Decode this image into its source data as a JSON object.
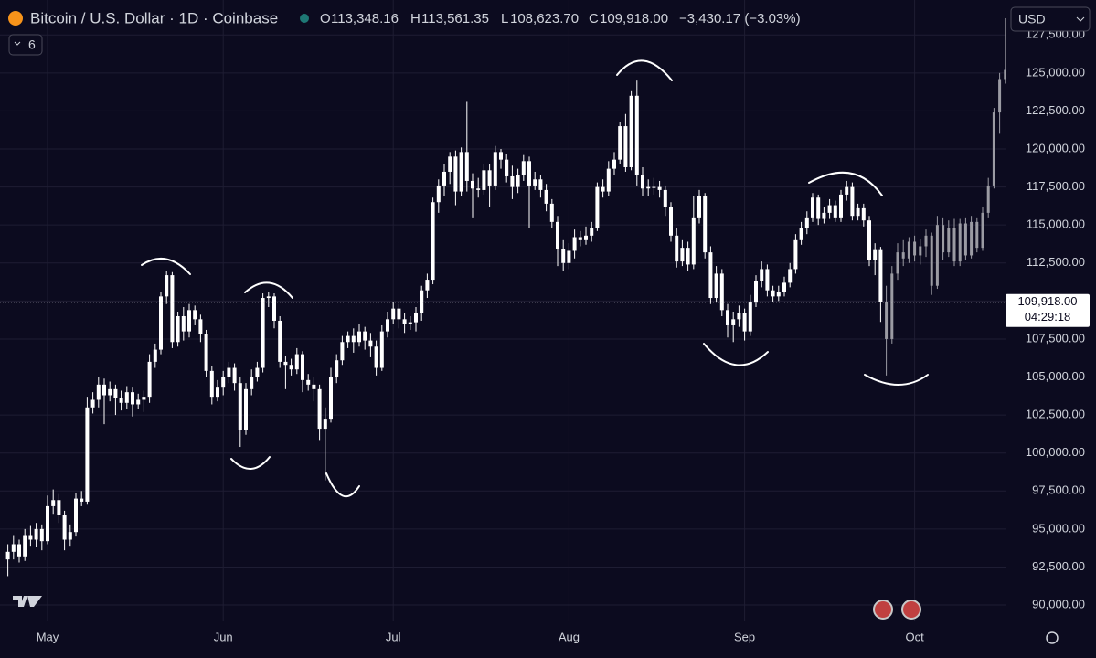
{
  "chart_data": {
    "type": "candlestick",
    "header": {
      "title": "Bitcoin / U.S. Dollar · 1D · Coinbase",
      "o_label": "O",
      "o": "113,348.16",
      "h_label": "H",
      "h": "113,561.35",
      "l_label": "L",
      "l": "108,623.70",
      "c_label": "C",
      "c": "109,918.00",
      "change": "−3,430.17 (−3.03%)"
    },
    "currency": "USD",
    "indicator_count": "6",
    "last_price_label": "109,918.00",
    "countdown": "04:29:18",
    "color": "#ffffff",
    "projection_color": "#9b9ba3",
    "grid": true,
    "ylim": [
      88920,
      129800
    ],
    "yticks": [
      {
        "value": 90000,
        "label": "90,000.00"
      },
      {
        "value": 92500,
        "label": "92,500.00"
      },
      {
        "value": 95000,
        "label": "95,000.00"
      },
      {
        "value": 97500,
        "label": "97,500.00"
      },
      {
        "value": 100000,
        "label": "100,000.00"
      },
      {
        "value": 102500,
        "label": "102,500.00"
      },
      {
        "value": 105000,
        "label": "105,000.00"
      },
      {
        "value": 107500,
        "label": "107,500.00"
      },
      {
        "value": 110000,
        "label": "110,000.00"
      },
      {
        "value": 112500,
        "label": "112,500.00"
      },
      {
        "value": 115000,
        "label": "115,000.00"
      },
      {
        "value": 117500,
        "label": "117,500.00"
      },
      {
        "value": 120000,
        "label": "120,000.00"
      },
      {
        "value": 122500,
        "label": "122,500.00"
      },
      {
        "value": 125000,
        "label": "125,000.00"
      },
      {
        "value": 127500,
        "label": "127,500.00"
      }
    ],
    "xticks": [
      {
        "value": 7,
        "label": "May"
      },
      {
        "value": 38,
        "label": "Jun"
      },
      {
        "value": 68,
        "label": "Jul"
      },
      {
        "value": 99,
        "label": "Aug"
      },
      {
        "value": 130,
        "label": "Sep"
      },
      {
        "value": 160,
        "label": "Oct"
      }
    ],
    "candles": [
      [
        93000,
        94000,
        91900,
        93500
      ],
      [
        93500,
        94600,
        93000,
        94000
      ],
      [
        94000,
        94300,
        92800,
        93200
      ],
      [
        93200,
        95000,
        92900,
        94600
      ],
      [
        94600,
        95200,
        93900,
        94300
      ],
      [
        94300,
        95400,
        93800,
        95000
      ],
      [
        95000,
        95300,
        93600,
        94200
      ],
      [
        94200,
        97200,
        94000,
        96500
      ],
      [
        96500,
        97600,
        96000,
        96900
      ],
      [
        96900,
        97300,
        95400,
        95900
      ],
      [
        95900,
        96200,
        93600,
        94300
      ],
      [
        94300,
        95300,
        93900,
        94800
      ],
      [
        94800,
        97400,
        94500,
        97000
      ],
      [
        97000,
        97500,
        96500,
        96800
      ],
      [
        96800,
        103700,
        96600,
        103000
      ],
      [
        103000,
        104000,
        102600,
        103500
      ],
      [
        103500,
        105000,
        103000,
        104500
      ],
      [
        104500,
        104900,
        101900,
        103800
      ],
      [
        103800,
        104700,
        103400,
        104200
      ],
      [
        104200,
        104500,
        102500,
        103600
      ],
      [
        103600,
        104100,
        102800,
        103300
      ],
      [
        103300,
        104400,
        102900,
        104000
      ],
      [
        104000,
        104300,
        102400,
        103200
      ],
      [
        103200,
        103900,
        102900,
        103500
      ],
      [
        103500,
        104100,
        102700,
        103700
      ],
      [
        103700,
        106500,
        103300,
        106000
      ],
      [
        106000,
        107200,
        105600,
        106800
      ],
      [
        106800,
        110600,
        106500,
        110300
      ],
      [
        110300,
        112000,
        109800,
        111700
      ],
      [
        111700,
        111900,
        106900,
        107300
      ],
      [
        107300,
        109300,
        107000,
        109000
      ],
      [
        109000,
        109600,
        107400,
        108000
      ],
      [
        108000,
        109800,
        107600,
        109400
      ],
      [
        109400,
        109700,
        108400,
        108800
      ],
      [
        108800,
        109100,
        107300,
        107800
      ],
      [
        107800,
        108100,
        105000,
        105400
      ],
      [
        105400,
        105700,
        103200,
        103700
      ],
      [
        103700,
        104800,
        103400,
        104300
      ],
      [
        104300,
        105400,
        103800,
        105000
      ],
      [
        105000,
        106000,
        104600,
        105600
      ],
      [
        105600,
        105900,
        104100,
        104600
      ],
      [
        104600,
        105000,
        100400,
        101500
      ],
      [
        101500,
        104600,
        101200,
        104200
      ],
      [
        104200,
        105500,
        103800,
        105000
      ],
      [
        105000,
        106000,
        104700,
        105600
      ],
      [
        105600,
        110500,
        105300,
        110200
      ],
      [
        110200,
        110600,
        109600,
        110300
      ],
      [
        110300,
        110500,
        108200,
        108700
      ],
      [
        108700,
        109000,
        105600,
        106000
      ],
      [
        106000,
        106400,
        104200,
        105800
      ],
      [
        105800,
        106200,
        105100,
        105500
      ],
      [
        105500,
        106900,
        105200,
        106500
      ],
      [
        106500,
        106700,
        104000,
        104800
      ],
      [
        104800,
        105200,
        104100,
        104500
      ],
      [
        104500,
        105000,
        103400,
        104200
      ],
      [
        104200,
        104500,
        100800,
        101600
      ],
      [
        101600,
        103000,
        98200,
        102200
      ],
      [
        102200,
        105600,
        102000,
        105000
      ],
      [
        105000,
        106500,
        104600,
        106100
      ],
      [
        106100,
        107700,
        105800,
        107300
      ],
      [
        107300,
        108000,
        106900,
        107700
      ],
      [
        107700,
        108200,
        106600,
        107300
      ],
      [
        107300,
        108500,
        107000,
        108000
      ],
      [
        108000,
        108300,
        106800,
        107400
      ],
      [
        107400,
        107900,
        106300,
        107000
      ],
      [
        107000,
        107400,
        105100,
        105600
      ],
      [
        105600,
        108400,
        105400,
        108000
      ],
      [
        108000,
        109300,
        107600,
        108800
      ],
      [
        108800,
        109900,
        108500,
        109500
      ],
      [
        109500,
        109800,
        108200,
        108800
      ],
      [
        108800,
        109200,
        107900,
        108500
      ],
      [
        108500,
        109000,
        108100,
        108600
      ],
      [
        108600,
        109600,
        108000,
        109200
      ],
      [
        109200,
        111000,
        108700,
        110700
      ],
      [
        110700,
        111800,
        110200,
        111400
      ],
      [
        111400,
        116800,
        111100,
        116500
      ],
      [
        116500,
        118000,
        115800,
        117600
      ],
      [
        117600,
        119000,
        116900,
        118500
      ],
      [
        118500,
        119800,
        117700,
        119500
      ],
      [
        119500,
        119900,
        116300,
        117200
      ],
      [
        117200,
        120100,
        116900,
        119800
      ],
      [
        119800,
        123100,
        117200,
        117900
      ],
      [
        117900,
        118400,
        115500,
        117400
      ],
      [
        117400,
        118100,
        116800,
        117300
      ],
      [
        117300,
        119000,
        117000,
        118600
      ],
      [
        118600,
        119000,
        116200,
        117600
      ],
      [
        117600,
        120200,
        117300,
        119800
      ],
      [
        119800,
        120000,
        118700,
        119300
      ],
      [
        119300,
        119700,
        117800,
        118200
      ],
      [
        118200,
        118900,
        116700,
        117500
      ],
      [
        117500,
        118700,
        117100,
        118300
      ],
      [
        118300,
        119600,
        117900,
        119200
      ],
      [
        119200,
        119500,
        114800,
        117600
      ],
      [
        117600,
        118500,
        117300,
        118000
      ],
      [
        118000,
        118300,
        116800,
        117300
      ],
      [
        117300,
        117700,
        115900,
        116400
      ],
      [
        116400,
        116700,
        114800,
        115200
      ],
      [
        115200,
        115600,
        112300,
        113400
      ],
      [
        113400,
        114000,
        112000,
        112500
      ],
      [
        112500,
        113800,
        112100,
        113300
      ],
      [
        113300,
        114700,
        112800,
        114200
      ],
      [
        114200,
        114600,
        113600,
        114000
      ],
      [
        114000,
        114900,
        113700,
        114300
      ],
      [
        114300,
        115200,
        113900,
        114800
      ],
      [
        114800,
        117800,
        114600,
        117500
      ],
      [
        117500,
        118000,
        116800,
        117200
      ],
      [
        117200,
        119200,
        116900,
        118700
      ],
      [
        118700,
        119800,
        118300,
        119300
      ],
      [
        119300,
        121800,
        119000,
        121500
      ],
      [
        121500,
        122300,
        118500,
        118800
      ],
      [
        118800,
        123800,
        118600,
        123500
      ],
      [
        123500,
        124500,
        117600,
        118300
      ],
      [
        118300,
        118800,
        116900,
        117400
      ],
      [
        117400,
        118000,
        116900,
        117500
      ],
      [
        117500,
        118100,
        117000,
        117500
      ],
      [
        117500,
        117900,
        116800,
        117300
      ],
      [
        117300,
        117600,
        115600,
        116200
      ],
      [
        116200,
        116500,
        113900,
        114300
      ],
      [
        114300,
        114800,
        112200,
        112600
      ],
      [
        112600,
        114000,
        112300,
        113500
      ],
      [
        113500,
        113900,
        112000,
        112400
      ],
      [
        112400,
        116900,
        112100,
        115500
      ],
      [
        115500,
        117300,
        115100,
        116900
      ],
      [
        116900,
        117100,
        112800,
        113200
      ],
      [
        113200,
        113600,
        109800,
        110200
      ],
      [
        110200,
        112300,
        109900,
        111800
      ],
      [
        111800,
        112100,
        109000,
        109400
      ],
      [
        109400,
        109800,
        107600,
        108400
      ],
      [
        108400,
        109300,
        107300,
        108800
      ],
      [
        108800,
        109700,
        108300,
        109200
      ],
      [
        109200,
        109500,
        107400,
        108000
      ],
      [
        108000,
        110400,
        107700,
        109900
      ],
      [
        109900,
        111700,
        109600,
        111300
      ],
      [
        111300,
        112600,
        110900,
        112100
      ],
      [
        112100,
        112400,
        110300,
        110700
      ],
      [
        110700,
        111000,
        109900,
        110300
      ],
      [
        110300,
        111000,
        110000,
        110600
      ],
      [
        110600,
        111600,
        110300,
        111200
      ],
      [
        111200,
        112500,
        110900,
        112100
      ],
      [
        112100,
        114400,
        111800,
        114000
      ],
      [
        114000,
        115200,
        113700,
        114800
      ],
      [
        114800,
        115900,
        114400,
        115500
      ],
      [
        115500,
        117100,
        115200,
        116800
      ],
      [
        116800,
        117000,
        115000,
        115400
      ],
      [
        115400,
        116200,
        115100,
        115800
      ],
      [
        115800,
        116700,
        115400,
        116300
      ],
      [
        116300,
        116600,
        115200,
        115500
      ],
      [
        115500,
        117300,
        115200,
        117000
      ],
      [
        117000,
        117900,
        116600,
        117500
      ],
      [
        117500,
        117800,
        115300,
        115600
      ],
      [
        115600,
        116400,
        115300,
        116100
      ],
      [
        116100,
        116400,
        114900,
        115300
      ],
      [
        115300,
        115600,
        112300,
        112700
      ],
      [
        112700,
        113800,
        111700,
        113348.16
      ],
      [
        113348.16,
        113561.35,
        108623.7,
        109918
      ]
    ],
    "projection": [
      [
        109900,
        111000,
        105100,
        107500
      ],
      [
        107500,
        112300,
        107200,
        111800
      ],
      [
        111800,
        113800,
        111400,
        113200
      ],
      [
        113200,
        114000,
        112300,
        112800
      ],
      [
        112800,
        114200,
        112500,
        113900
      ],
      [
        113900,
        114300,
        112600,
        113000
      ],
      [
        113000,
        114100,
        112400,
        113600
      ],
      [
        113600,
        114700,
        112900,
        114300
      ],
      [
        114300,
        114500,
        110400,
        111000
      ],
      [
        111000,
        115600,
        110800,
        115000
      ],
      [
        115000,
        115500,
        112700,
        113200
      ],
      [
        113200,
        115300,
        112900,
        114800
      ],
      [
        114800,
        115400,
        112300,
        112600
      ],
      [
        112600,
        115400,
        112300,
        115100
      ],
      [
        115100,
        115500,
        112700,
        113000
      ],
      [
        113000,
        115600,
        112800,
        115200
      ],
      [
        115200,
        115500,
        113200,
        113500
      ],
      [
        113500,
        116200,
        113300,
        115800
      ],
      [
        115800,
        118100,
        115500,
        117600
      ],
      [
        117600,
        122700,
        117400,
        122400
      ],
      [
        122400,
        125000,
        121000,
        124600
      ],
      [
        124600,
        128600,
        124300,
        125200
      ]
    ]
  }
}
